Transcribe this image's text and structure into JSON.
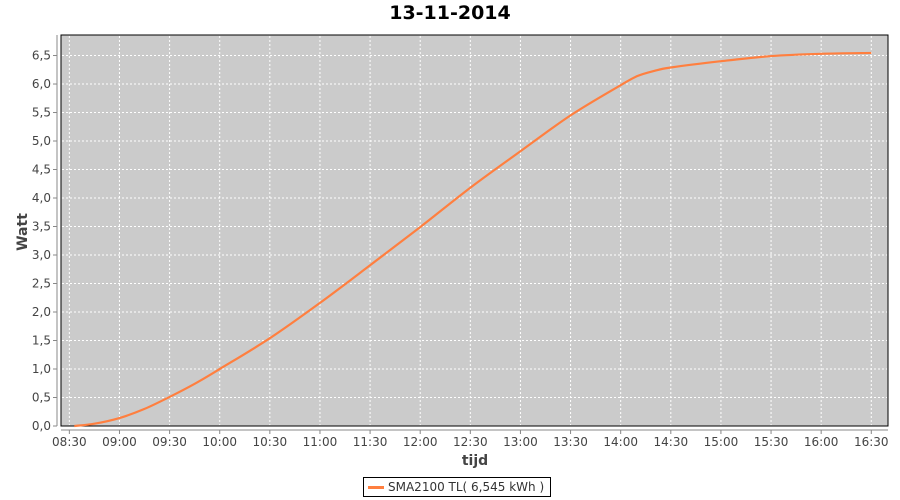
{
  "chart_data": {
    "type": "line",
    "title": "13-11-2014",
    "xlabel": "tijd",
    "ylabel": "Watt",
    "xlim": [
      "08:25",
      "16:40"
    ],
    "ylim": [
      0,
      6.86
    ],
    "grid": true,
    "legend_placement": "bottom",
    "x_ticks": [
      "08:30",
      "09:00",
      "09:30",
      "10:00",
      "10:30",
      "11:00",
      "11:30",
      "12:00",
      "12:30",
      "13:00",
      "13:30",
      "14:00",
      "14:30",
      "15:00",
      "15:30",
      "16:00",
      "16:30"
    ],
    "y_ticks": [
      "0,0",
      "0,5",
      "1,0",
      "1,5",
      "2,0",
      "2,5",
      "3,0",
      "3,5",
      "4,0",
      "4,5",
      "5,0",
      "5,5",
      "6,0",
      "6,5"
    ],
    "plot_background": "#cbcbcb",
    "series": [
      {
        "name": "SMA2100 TL( 6,545 kWh )",
        "color": "#ff7f3f",
        "x": [
          "08:33",
          "08:45",
          "09:00",
          "09:15",
          "09:30",
          "09:45",
          "10:00",
          "10:30",
          "11:00",
          "11:30",
          "12:00",
          "12:30",
          "13:00",
          "13:30",
          "14:00",
          "14:10",
          "14:20",
          "14:30",
          "15:00",
          "15:30",
          "16:00",
          "16:30"
        ],
        "y": [
          0.0,
          0.04,
          0.14,
          0.3,
          0.51,
          0.74,
          1.0,
          1.54,
          2.16,
          2.82,
          3.49,
          4.18,
          4.82,
          5.45,
          5.98,
          6.14,
          6.23,
          6.29,
          6.4,
          6.49,
          6.53,
          6.545
        ]
      }
    ]
  }
}
